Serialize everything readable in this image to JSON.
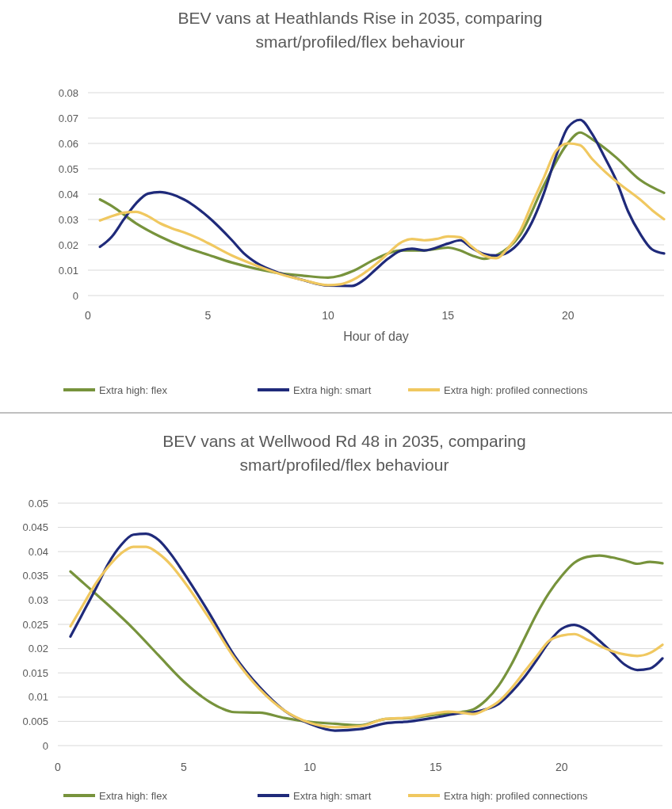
{
  "chart_data": [
    {
      "type": "line",
      "title": "BEV vans at Heathlands Rise in 2035, comparing smart/profiled/flex behaviour",
      "xlabel": "Hour of day",
      "xlim": [
        0,
        24
      ],
      "xticks": [
        0,
        5,
        10,
        15,
        20
      ],
      "ylim": [
        0,
        0.08
      ],
      "yticks": [
        0,
        0.01,
        0.02,
        0.03,
        0.04,
        0.05,
        0.06,
        0.07,
        0.08
      ],
      "grid": "y",
      "legend": "bottom",
      "series": [
        {
          "name": "Extra high: flex",
          "color": "#77933c",
          "x": [
            0.5,
            1,
            2,
            3,
            4,
            5,
            6,
            7,
            8,
            9,
            10,
            10.5,
            11,
            12,
            13,
            14,
            15,
            15.5,
            16,
            16.5,
            17,
            18,
            19,
            20,
            20.5,
            21,
            22,
            23,
            24
          ],
          "values": [
            0.0379,
            0.0353,
            0.0285,
            0.0233,
            0.0192,
            0.0161,
            0.013,
            0.0106,
            0.0088,
            0.0078,
            0.0071,
            0.0078,
            0.0095,
            0.0145,
            0.0178,
            0.0178,
            0.0189,
            0.0178,
            0.0158,
            0.0145,
            0.0158,
            0.0239,
            0.0436,
            0.0602,
            0.0643,
            0.0617,
            0.0545,
            0.0456,
            0.0405
          ]
        },
        {
          "name": "Extra high: smart",
          "color": "#1f2a7a",
          "x": [
            0.5,
            1,
            1.5,
            2,
            2.5,
            3,
            3.5,
            4,
            5,
            6,
            6.5,
            7,
            8,
            9,
            10,
            11,
            11.5,
            12,
            12.5,
            13,
            13.5,
            14,
            15,
            15.5,
            16,
            16.5,
            17,
            17.5,
            18,
            18.5,
            19,
            19.5,
            20,
            20.5,
            21,
            21.5,
            22,
            22.5,
            23,
            23.5,
            24
          ],
          "values": [
            0.0192,
            0.0233,
            0.0301,
            0.0363,
            0.0402,
            0.0408,
            0.0399,
            0.0379,
            0.0311,
            0.0218,
            0.0166,
            0.013,
            0.0088,
            0.006,
            0.0039,
            0.0038,
            0.0062,
            0.0104,
            0.0145,
            0.0176,
            0.0185,
            0.0178,
            0.0205,
            0.0218,
            0.0187,
            0.0164,
            0.0158,
            0.0171,
            0.0213,
            0.029,
            0.0405,
            0.055,
            0.0664,
            0.0693,
            0.0638,
            0.055,
            0.0456,
            0.0332,
            0.0244,
            0.0182,
            0.0166
          ]
        },
        {
          "name": "Extra high: profiled connections",
          "color": "#f0c860",
          "x": [
            0.5,
            1,
            1.5,
            2,
            2.5,
            3,
            3.5,
            4,
            4.5,
            5,
            6,
            7,
            8,
            9,
            10,
            10.5,
            11,
            12,
            12.5,
            13,
            13.5,
            14,
            14.5,
            15,
            15.5,
            16,
            16.5,
            17,
            17.5,
            18,
            18.5,
            19,
            19.5,
            20,
            20.5,
            21,
            21.5,
            22,
            22.5,
            23,
            23.5,
            24
          ],
          "values": [
            0.0296,
            0.0313,
            0.0327,
            0.033,
            0.0313,
            0.0285,
            0.0265,
            0.0249,
            0.023,
            0.0207,
            0.0158,
            0.0119,
            0.0085,
            0.006,
            0.0041,
            0.0044,
            0.006,
            0.0124,
            0.0166,
            0.0207,
            0.0223,
            0.0218,
            0.0223,
            0.0233,
            0.023,
            0.0192,
            0.0158,
            0.0147,
            0.0187,
            0.0254,
            0.0363,
            0.0467,
            0.0571,
            0.06,
            0.0593,
            0.0539,
            0.0492,
            0.0451,
            0.0415,
            0.0379,
            0.0337,
            0.0301
          ]
        }
      ]
    },
    {
      "type": "line",
      "title": "BEV vans at Wellwood Rd 48 in 2035, comparing smart/profiled/flex behaviour",
      "xlim": [
        0,
        24
      ],
      "xticks": [
        0,
        5,
        10,
        15,
        20
      ],
      "ylim": [
        0,
        0.05
      ],
      "yticks": [
        0,
        0.005,
        0.01,
        0.015,
        0.02,
        0.025,
        0.03,
        0.035,
        0.04,
        0.045,
        0.05
      ],
      "grid": "y",
      "legend": "bottom",
      "series": [
        {
          "name": "Extra high: flex",
          "color": "#77933c",
          "x": [
            0.5,
            1,
            2,
            3,
            4,
            5,
            6,
            6.5,
            7,
            8,
            9,
            10,
            11,
            12,
            13,
            14,
            15,
            16,
            16.5,
            17,
            17.5,
            18,
            18.5,
            19,
            19.5,
            20,
            20.5,
            21,
            21.5,
            22,
            22.5,
            23,
            23.5,
            24
          ],
          "values": [
            0.0359,
            0.0336,
            0.029,
            0.0241,
            0.0186,
            0.0132,
            0.0091,
            0.0077,
            0.0069,
            0.0068,
            0.0057,
            0.0049,
            0.0045,
            0.0042,
            0.0055,
            0.0057,
            0.0064,
            0.0069,
            0.0075,
            0.0094,
            0.0124,
            0.0167,
            0.0219,
            0.0271,
            0.0315,
            0.035,
            0.0377,
            0.0389,
            0.0392,
            0.0388,
            0.0382,
            0.0375,
            0.0379,
            0.0376
          ]
        },
        {
          "name": "Extra high: smart",
          "color": "#1f2a7a",
          "x": [
            0.5,
            1,
            1.5,
            2,
            2.5,
            3,
            3.5,
            4,
            4.5,
            5,
            6,
            7,
            8,
            9,
            10,
            11,
            12,
            13,
            14,
            15,
            16,
            16.5,
            17,
            17.5,
            18,
            18.5,
            19,
            19.5,
            20,
            20.5,
            21,
            21.5,
            22,
            22.5,
            23,
            23.5,
            24
          ],
          "values": [
            0.0225,
            0.0274,
            0.0323,
            0.0375,
            0.0413,
            0.0435,
            0.0437,
            0.0424,
            0.0394,
            0.0356,
            0.0274,
            0.0186,
            0.0121,
            0.0072,
            0.0045,
            0.0031,
            0.0034,
            0.0046,
            0.005,
            0.0058,
            0.0067,
            0.0069,
            0.0075,
            0.0086,
            0.011,
            0.014,
            0.0176,
            0.0214,
            0.0241,
            0.0249,
            0.0238,
            0.0216,
            0.0192,
            0.0167,
            0.0156,
            0.0159,
            0.018
          ]
        },
        {
          "name": "Extra high: profiled connections",
          "color": "#f0c860",
          "x": [
            0.5,
            1,
            1.5,
            2,
            2.5,
            3,
            3.5,
            4,
            4.5,
            5,
            6,
            7,
            8,
            9,
            10,
            11,
            12,
            13,
            14,
            15,
            15.5,
            16,
            16.5,
            17,
            17.5,
            18,
            18.5,
            19,
            19.5,
            20,
            20.5,
            21,
            21.5,
            22,
            22.5,
            23,
            23.5,
            24
          ],
          "values": [
            0.0246,
            0.029,
            0.0334,
            0.0369,
            0.0396,
            0.041,
            0.041,
            0.0396,
            0.0372,
            0.0339,
            0.0263,
            0.0181,
            0.0117,
            0.0072,
            0.0047,
            0.0038,
            0.004,
            0.0055,
            0.0058,
            0.0067,
            0.007,
            0.0068,
            0.0065,
            0.0075,
            0.0091,
            0.0118,
            0.0151,
            0.0184,
            0.0216,
            0.0227,
            0.023,
            0.0219,
            0.0206,
            0.0195,
            0.0188,
            0.0185,
            0.0191,
            0.0208
          ]
        }
      ]
    }
  ]
}
